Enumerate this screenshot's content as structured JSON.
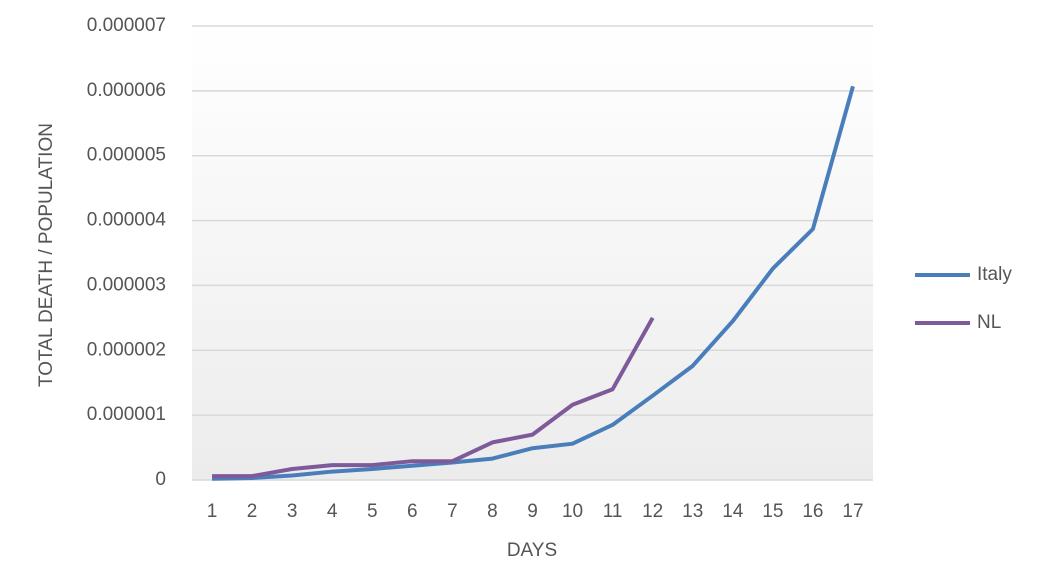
{
  "chart_data": {
    "type": "line",
    "x_label": "DAYS",
    "y_label": "TOTAL DEATH / POPULATION",
    "categories": [
      1,
      2,
      3,
      4,
      5,
      6,
      7,
      8,
      9,
      10,
      11,
      12,
      13,
      14,
      15,
      16,
      17
    ],
    "series": [
      {
        "name": "Italy",
        "color": "#4a7ebb",
        "values": [
          2e-08,
          3e-08,
          7e-08,
          1.3e-07,
          1.7e-07,
          2.2e-07,
          2.7e-07,
          3.3e-07,
          4.9e-07,
          5.6e-07,
          8.5e-07,
          1.3e-06,
          1.76e-06,
          2.45e-06,
          3.26e-06,
          3.87e-06,
          6.07e-06
        ]
      },
      {
        "name": "NL",
        "color": "#7e5a9b",
        "values": [
          6e-08,
          6e-08,
          1.7e-07,
          2.3e-07,
          2.3e-07,
          2.9e-07,
          2.9e-07,
          5.8e-07,
          7e-07,
          1.16e-06,
          1.4e-06,
          2.5e-06,
          null,
          null,
          null,
          null,
          null
        ]
      }
    ],
    "ylim": [
      0,
      7e-06
    ],
    "yticks": [
      0,
      1e-06,
      2e-06,
      3e-06,
      4e-06,
      5e-06,
      6e-06,
      7e-06
    ],
    "grid": true,
    "legend": "right"
  }
}
